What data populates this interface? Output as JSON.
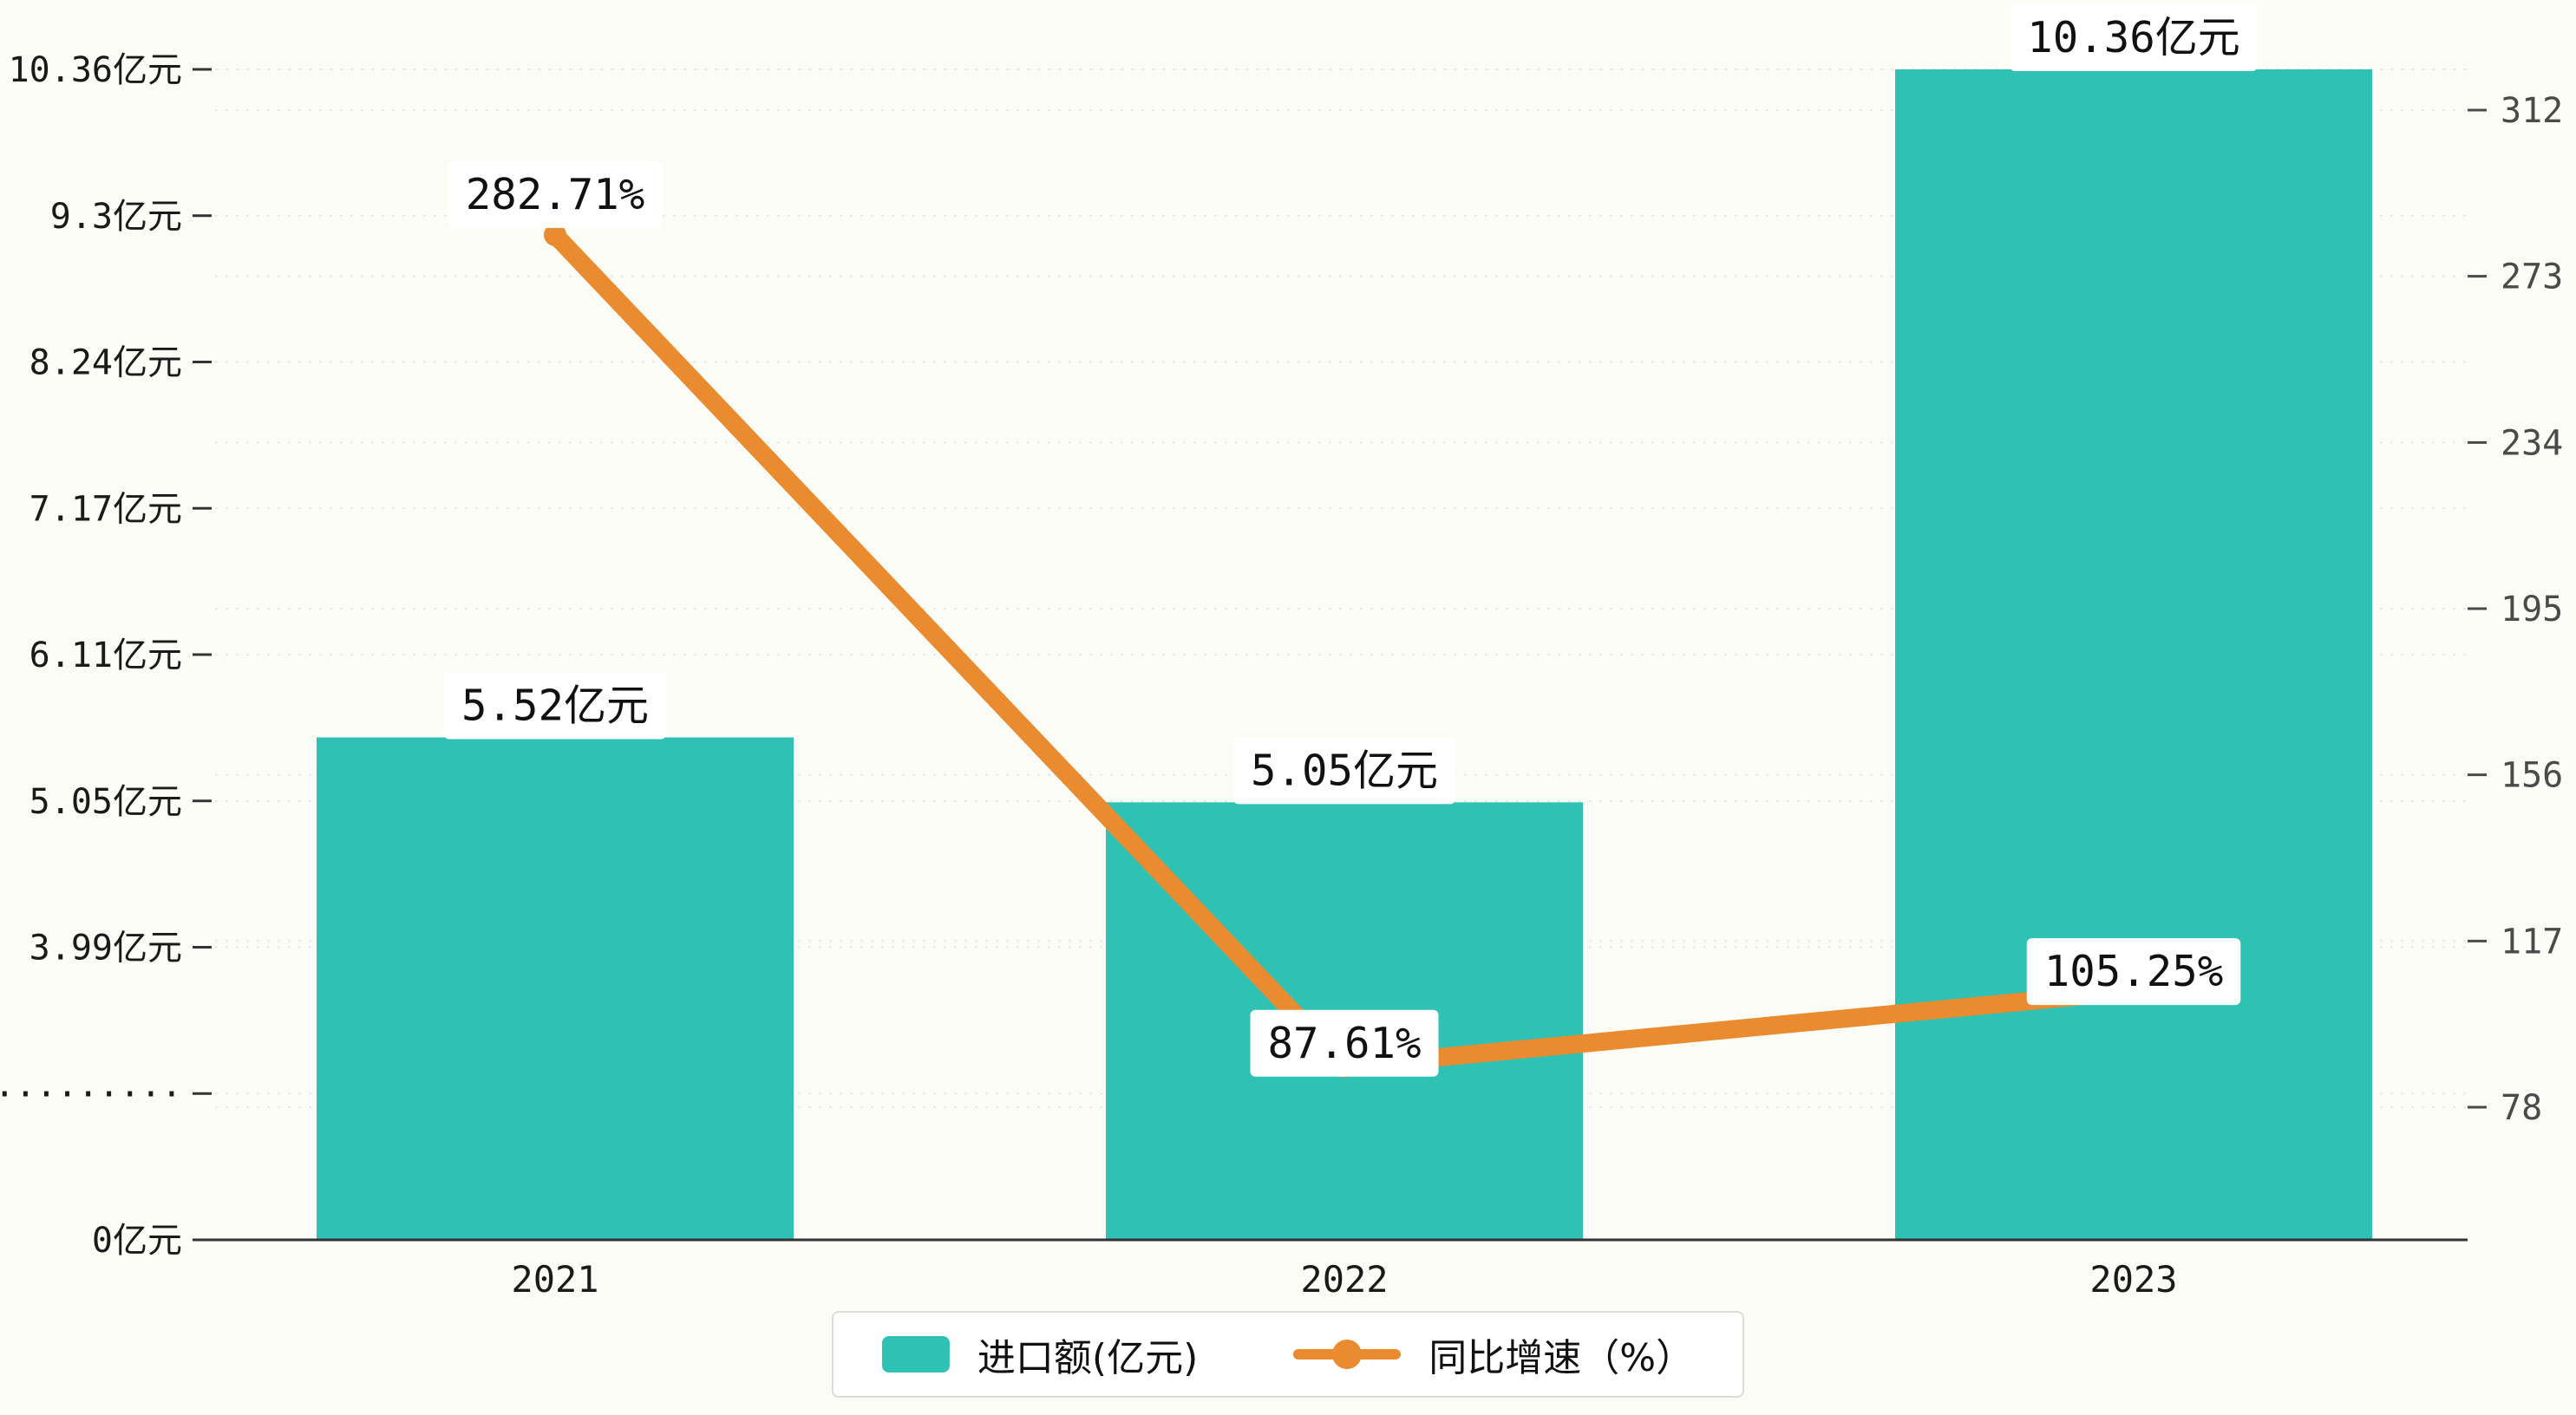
{
  "chart_data": {
    "type": "combo-bar-line",
    "title": "",
    "categories": [
      "2021",
      "2022",
      "2023"
    ],
    "series": [
      {
        "name": "进口额(亿元)",
        "type": "bar",
        "axis": "left",
        "values": [
          5.52,
          5.05,
          10.36
        ],
        "labels": [
          "5.52亿元",
          "5.05亿元",
          "10.36亿元"
        ]
      },
      {
        "name": "同比增速（%）",
        "type": "line",
        "axis": "right",
        "values": [
          282.71,
          87.61,
          105.25
        ],
        "labels": [
          "282.71%",
          "87.61%",
          "105.25%"
        ]
      }
    ],
    "left_axis": {
      "unit": "亿元",
      "ticks": [
        "10.36亿元",
        "9.3亿元",
        "8.24亿元",
        "7.17亿元",
        "6.11亿元",
        "5.05亿元",
        "3.99亿元",
        "·········",
        "0亿元"
      ],
      "tick_values": [
        10.36,
        9.3,
        8.24,
        7.17,
        6.11,
        5.05,
        3.99,
        null,
        0
      ],
      "broken_axis": true
    },
    "right_axis": {
      "unit": "%",
      "ticks": [
        312,
        273,
        234,
        195,
        156,
        117,
        78
      ]
    },
    "legend": {
      "position": "bottom",
      "items": [
        {
          "label": "进口额(亿元)",
          "marker": "bar-swatch"
        },
        {
          "label": "同比增速（%）",
          "marker": "line-dot"
        }
      ]
    },
    "grid": "horizontal-dashed"
  },
  "colors": {
    "bar": "#2FC1B3",
    "line": "#EB8B2F",
    "background": "#FCFCF7",
    "grid": "#EAE9E1",
    "axis": "#333333",
    "text": "#1A1A1A",
    "right_axis_text": "#4A4A4A",
    "label_bg": "#FFFFFF",
    "legend_border": "#DCDCD2"
  }
}
